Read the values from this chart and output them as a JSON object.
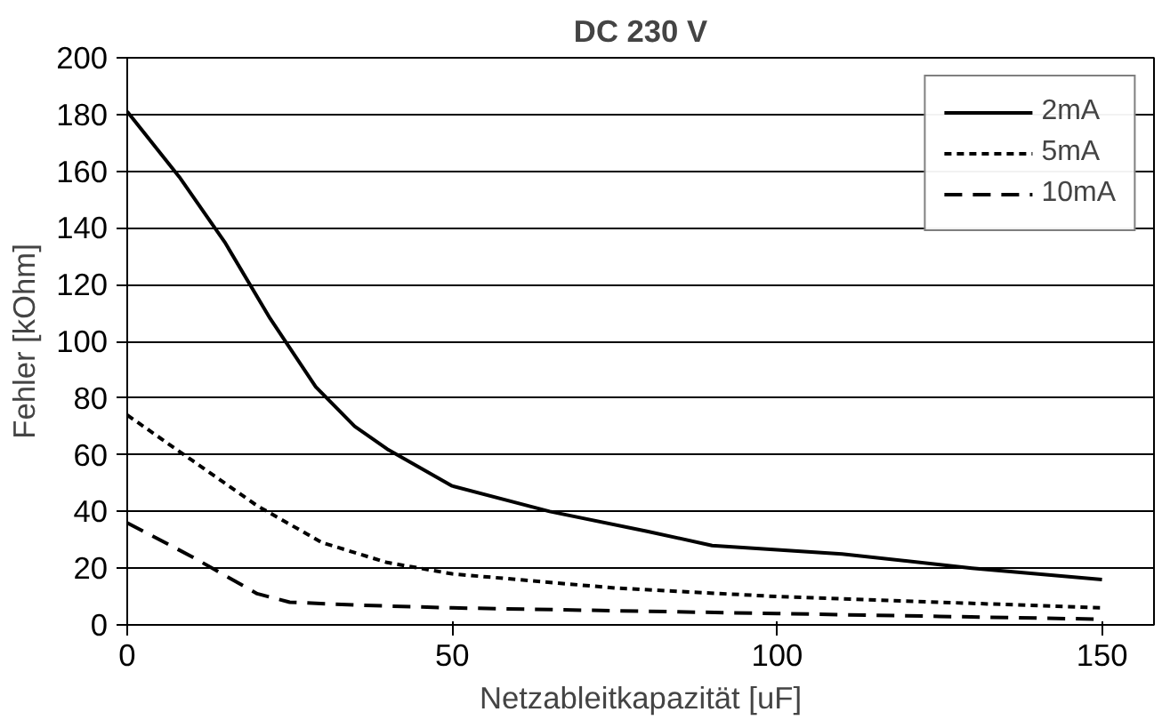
{
  "chart_data": {
    "type": "line",
    "title": "DC 230 V",
    "xlabel": "Netzableitkapazität [uF]",
    "ylabel": "Fehler [kOhm]",
    "xlim": [
      0,
      158
    ],
    "xticks": [
      0,
      50,
      100,
      150
    ],
    "ylim": [
      0,
      200
    ],
    "yticks": [
      0,
      20,
      40,
      60,
      80,
      100,
      120,
      140,
      160,
      180,
      200
    ],
    "grid": "y",
    "legend": "top right",
    "marker": "none",
    "series": [
      {
        "name": "2mA",
        "color": "#000000",
        "line_style": "solid",
        "x": [
          0,
          8,
          15,
          22,
          29,
          35,
          40,
          50,
          65,
          80,
          90,
          110,
          130,
          150
        ],
        "values": [
          181,
          158,
          135,
          108,
          84,
          70,
          62,
          49,
          40,
          33,
          28,
          25,
          20,
          16
        ]
      },
      {
        "name": "5mA",
        "color": "#000000",
        "line_style": "dotted",
        "x": [
          0,
          10,
          20,
          30,
          40,
          50,
          75,
          100,
          125,
          150
        ],
        "values": [
          74,
          58,
          42,
          29,
          22,
          18,
          13,
          10,
          8,
          6
        ]
      },
      {
        "name": "10mA",
        "color": "#000000",
        "line_style": "dashed",
        "x": [
          0,
          10,
          20,
          25,
          35,
          50,
          75,
          100,
          125,
          150
        ],
        "values": [
          36,
          24,
          11,
          8,
          7,
          6,
          5,
          4,
          3,
          2
        ]
      }
    ]
  }
}
